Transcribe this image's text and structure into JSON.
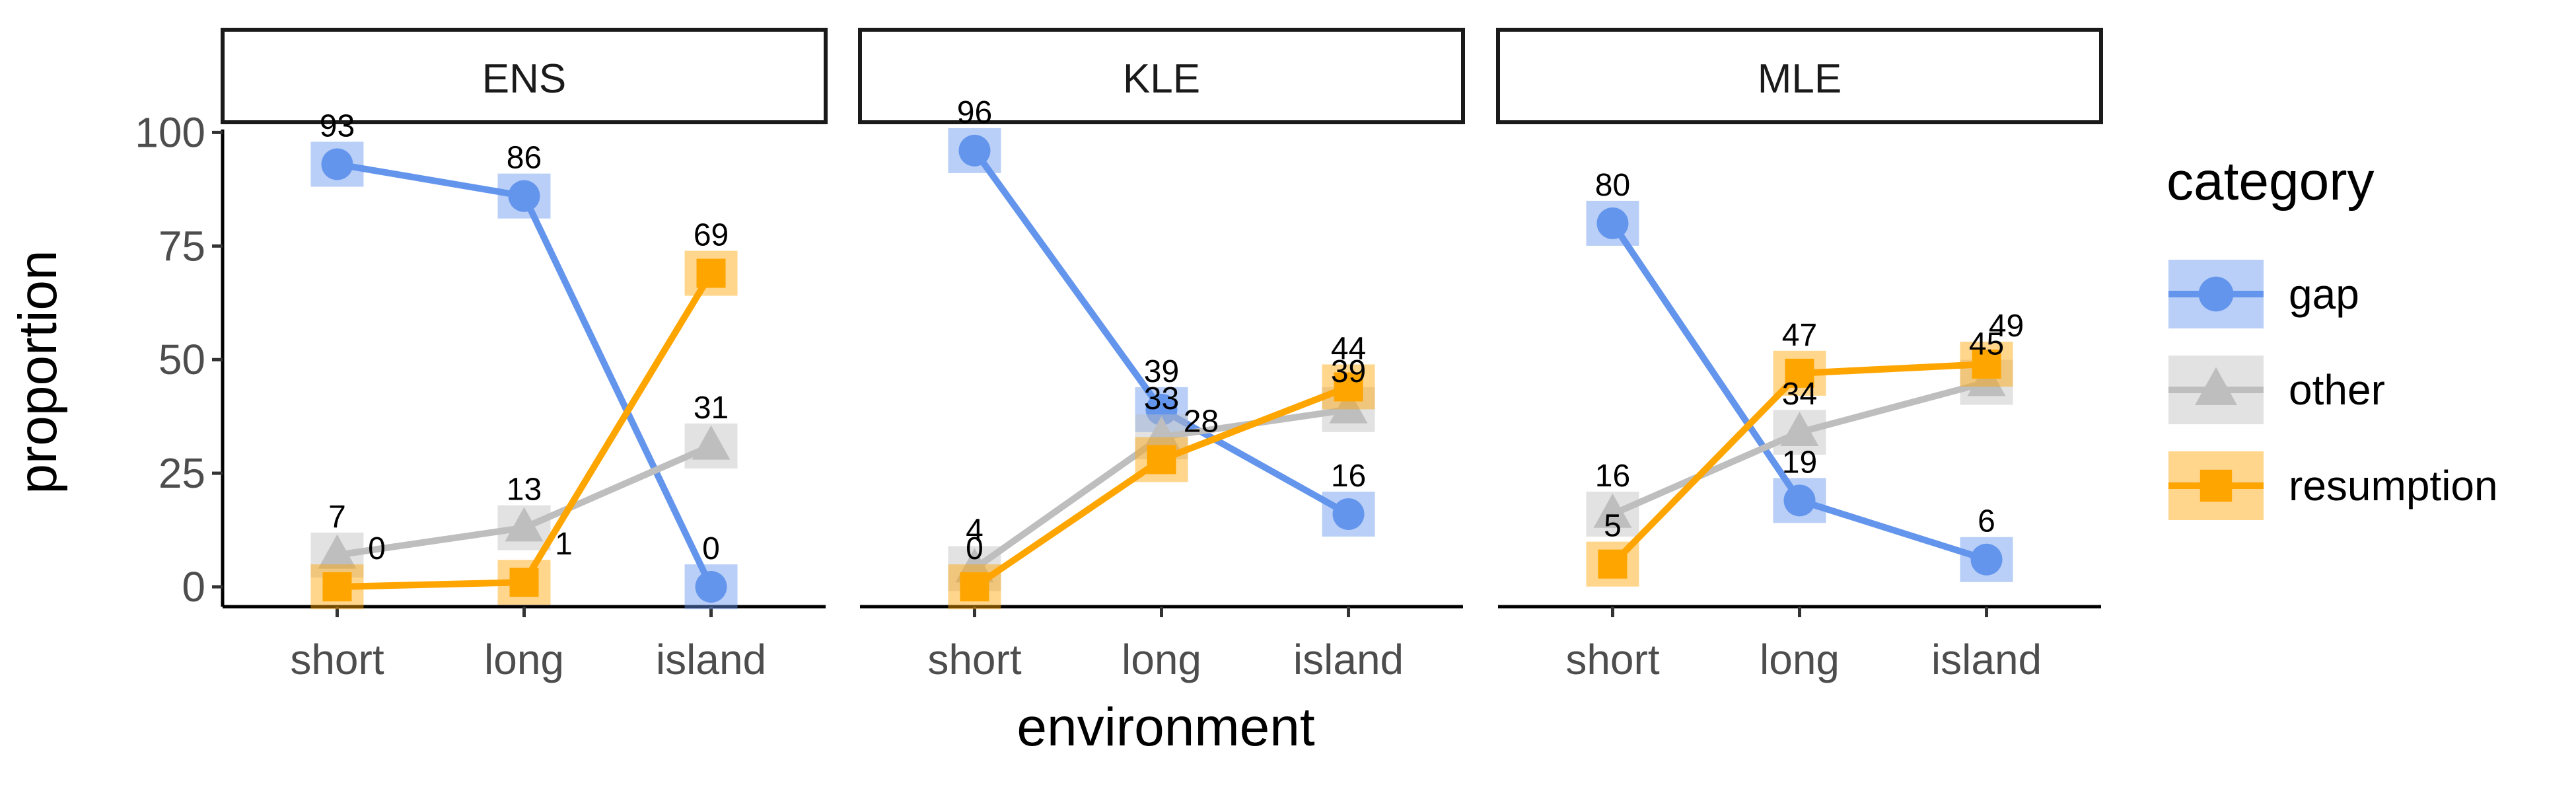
{
  "chart_data": {
    "type": "line",
    "facets": [
      "ENS",
      "KLE",
      "MLE"
    ],
    "categories": [
      "short",
      "long",
      "island"
    ],
    "xlabel": "environment",
    "ylabel": "proportion",
    "ylim": [
      0,
      100
    ],
    "yticks": [
      0,
      25,
      50,
      75,
      100
    ],
    "legend": {
      "title": "category",
      "placement": "right",
      "entries": [
        "gap",
        "other",
        "resumption"
      ]
    },
    "series": [
      {
        "name": "gap",
        "marker": "circle",
        "color": "#6495ED",
        "values": {
          "ENS": [
            93,
            86,
            0
          ],
          "KLE": [
            96,
            39,
            16
          ],
          "MLE": [
            80,
            19,
            6
          ]
        },
        "labels": {
          "ENS": [
            "93",
            "86",
            "0"
          ],
          "KLE": [
            "96",
            "39",
            "16"
          ],
          "MLE": [
            "80",
            "19",
            "6"
          ]
        }
      },
      {
        "name": "other",
        "marker": "triangle",
        "color": "#BEBEBE",
        "values": {
          "ENS": [
            7,
            13,
            31
          ],
          "KLE": [
            4,
            33,
            39
          ],
          "MLE": [
            16,
            34,
            45
          ]
        },
        "labels": {
          "ENS": [
            "7",
            "13",
            "31"
          ],
          "KLE": [
            "4",
            "33",
            "39"
          ],
          "MLE": [
            "16",
            "34",
            "45"
          ]
        }
      },
      {
        "name": "resumption",
        "marker": "square",
        "color": "#FFA500",
        "values": {
          "ENS": [
            0,
            1,
            69
          ],
          "KLE": [
            0,
            28,
            44
          ],
          "MLE": [
            5,
            47,
            49
          ]
        },
        "labels": {
          "ENS": [
            "0",
            "1",
            "69"
          ],
          "KLE": [
            "0",
            "28",
            "44"
          ],
          "MLE": [
            "5",
            "47",
            "49"
          ]
        }
      }
    ]
  }
}
